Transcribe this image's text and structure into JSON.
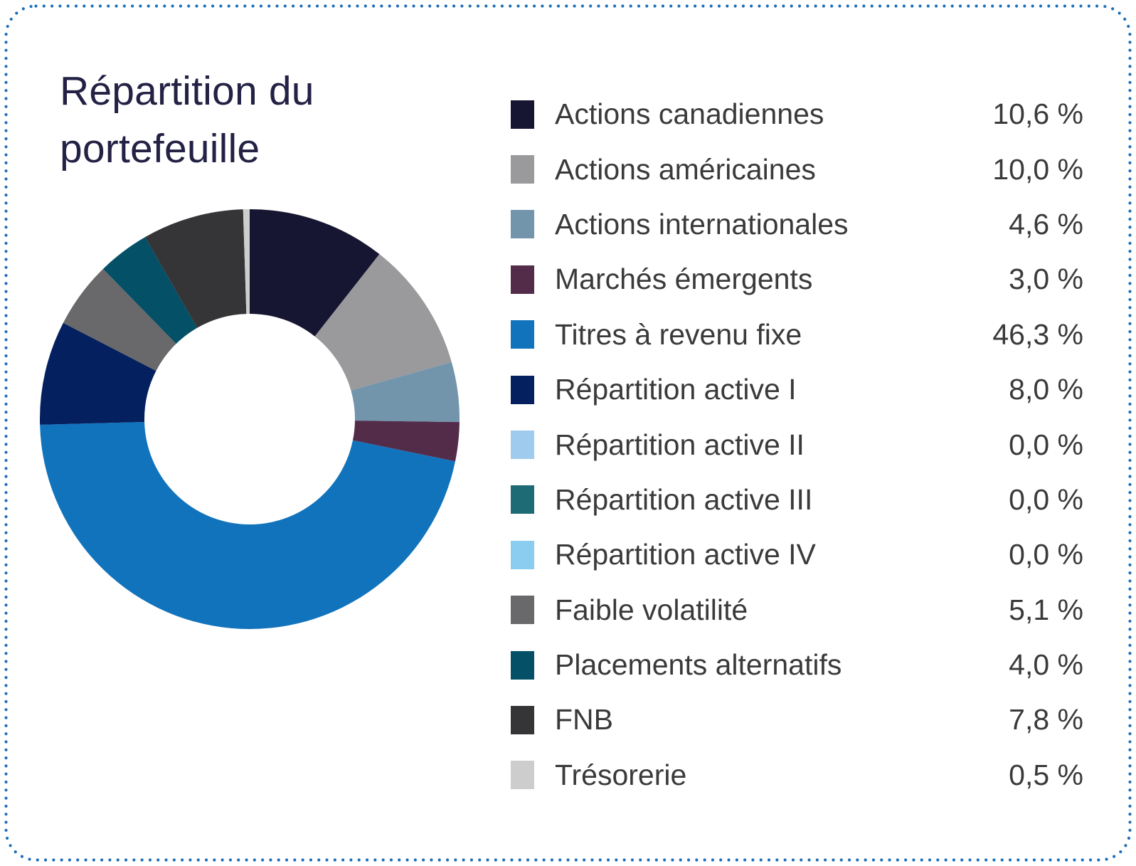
{
  "card": {
    "title": "Répartition du portefeuille"
  },
  "theme": {
    "background": "#ffffff",
    "border_dot_color": "#1b6db8",
    "title_color": "#232144",
    "text_color": "#3a3a3a"
  },
  "chart_data": {
    "type": "pie",
    "subtype": "donut",
    "title": "Répartition du portefeuille",
    "categories": [
      "Actions canadiennes",
      "Actions américaines",
      "Actions internationales",
      "Marchés émergents",
      "Titres à revenu fixe",
      "Répartition active I",
      "Répartition active II",
      "Répartition active III",
      "Répartition active IV",
      "Faible volatilité",
      "Placements alternatifs",
      "FNB",
      "Trésorerie"
    ],
    "values": [
      10.6,
      10.0,
      4.6,
      3.0,
      46.3,
      8.0,
      0.0,
      0.0,
      0.0,
      5.1,
      4.0,
      7.8,
      0.5
    ],
    "value_labels": [
      "10,6 %",
      "10,0 %",
      "4,6 %",
      "3,0 %",
      "46,3 %",
      "8,0 %",
      "0,0 %",
      "0,0 %",
      "0,0 %",
      "5,1 %",
      "4,0 %",
      "7,8 %",
      "0,5 %"
    ],
    "colors": [
      "#171632",
      "#9a9a9c",
      "#7295ac",
      "#532c4a",
      "#1173bc",
      "#04205f",
      "#9fcbee",
      "#1f6b75",
      "#8bcdf1",
      "#69696b",
      "#045067",
      "#353537",
      "#cdcdcd"
    ],
    "legend_position": "right",
    "start_angle_deg": 0,
    "direction": "clockwise",
    "inner_radius_ratio": 0.5
  }
}
